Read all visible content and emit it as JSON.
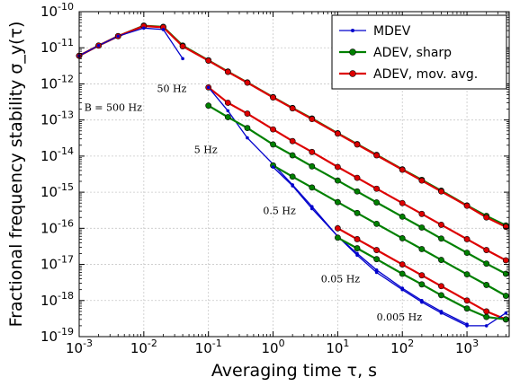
{
  "chart_data": {
    "type": "line",
    "xlabel": "Averaging time τ, s",
    "ylabel": "Fractional frequency stability σ_y(τ)",
    "xscale": "log",
    "yscale": "log",
    "xlim": [
      0.001,
      4500
    ],
    "ylim": [
      1e-19,
      1e-10
    ],
    "x_ticks": [
      {
        "base": "10",
        "exp": "-3",
        "value": 0.001
      },
      {
        "base": "10",
        "exp": "-2",
        "value": 0.01
      },
      {
        "base": "10",
        "exp": "-1",
        "value": 0.1
      },
      {
        "base": "10",
        "exp": "0",
        "value": 1
      },
      {
        "base": "10",
        "exp": "1",
        "value": 10
      },
      {
        "base": "10",
        "exp": "2",
        "value": 100
      },
      {
        "base": "10",
        "exp": "3",
        "value": 1000
      }
    ],
    "y_ticks": [
      {
        "base": "10",
        "exp": "-10",
        "value": 1e-10
      },
      {
        "base": "10",
        "exp": "-11",
        "value": 1e-11
      },
      {
        "base": "10",
        "exp": "-12",
        "value": 1e-12
      },
      {
        "base": "10",
        "exp": "-13",
        "value": 1e-13
      },
      {
        "base": "10",
        "exp": "-14",
        "value": 1e-14
      },
      {
        "base": "10",
        "exp": "-15",
        "value": 1e-15
      },
      {
        "base": "10",
        "exp": "-16",
        "value": 1e-16
      },
      {
        "base": "10",
        "exp": "-17",
        "value": 1e-17
      },
      {
        "base": "10",
        "exp": "-18",
        "value": 1e-18
      },
      {
        "base": "10",
        "exp": "-19",
        "value": 1e-19
      }
    ],
    "legend": {
      "position": "top-right",
      "entries": [
        {
          "label": "MDEV",
          "color": "#0000cc",
          "marker": "small-dot"
        },
        {
          "label": "ADEV, sharp",
          "color": "#008000",
          "marker": "circle"
        },
        {
          "label": "ADEV, mov. avg.",
          "color": "#dd0000",
          "marker": "circle"
        }
      ]
    },
    "annotations": [
      {
        "text": "B = 500 Hz",
        "x": 0.0012,
        "y": 1.8e-13
      },
      {
        "text": "50 Hz",
        "x": 0.016,
        "y": 6e-13
      },
      {
        "text": "5 Hz",
        "x": 0.06,
        "y": 1.2e-14
      },
      {
        "text": "0.5 Hz",
        "x": 0.7,
        "y": 2.5e-16
      },
      {
        "text": "0.05 Hz",
        "x": 5.5,
        "y": 3.2e-18
      },
      {
        "text": "0.005 Hz",
        "x": 40,
        "y": 2.8e-19
      }
    ],
    "series": [
      {
        "name": "ADEV, sharp",
        "group": "500 Hz",
        "color": "#008000",
        "x": [
          0.001,
          0.002,
          0.004,
          0.01,
          0.02,
          0.04,
          0.1,
          0.2,
          0.4,
          1,
          2,
          4,
          10,
          20,
          40,
          100,
          200,
          400,
          1000,
          2000,
          4000
        ],
        "y": [
          6e-12,
          1.15e-11,
          2.1e-11,
          4.1e-11,
          3.8e-11,
          1.15e-11,
          4.5e-12,
          2.2e-12,
          1.1e-12,
          4.3e-13,
          2.15e-13,
          1.1e-13,
          4.3e-14,
          2.15e-14,
          1.08e-14,
          4.3e-15,
          2.2e-15,
          1.1e-15,
          4.3e-16,
          2.2e-16,
          1.2e-16
        ]
      },
      {
        "name": "ADEV, mov. avg.",
        "group": "500 Hz",
        "color": "#dd0000",
        "x": [
          0.001,
          0.002,
          0.004,
          0.01,
          0.02,
          0.04,
          0.1,
          0.2,
          0.4,
          1,
          2,
          4,
          10,
          20,
          40,
          100,
          200,
          400,
          1000,
          2000,
          4000
        ],
        "y": [
          6e-12,
          1.15e-11,
          2.1e-11,
          4e-11,
          3.7e-11,
          1.1e-11,
          4.4e-12,
          2.15e-12,
          1.08e-12,
          4.2e-13,
          2.1e-13,
          1.06e-13,
          4.2e-14,
          2.1e-14,
          1.05e-14,
          4.2e-15,
          2.1e-15,
          1.05e-15,
          4.2e-16,
          2e-16,
          1.1e-16
        ]
      },
      {
        "name": "MDEV",
        "group": "500 Hz",
        "color": "#0000cc",
        "x": [
          0.001,
          0.002,
          0.004,
          0.01,
          0.02,
          0.04
        ],
        "y": [
          6e-12,
          1.15e-11,
          2.1e-11,
          3.5e-11,
          3.2e-11,
          5e-12
        ]
      },
      {
        "name": "ADEV, mov. avg.",
        "group": "5 Hz",
        "color": "#dd0000",
        "x": [
          0.1,
          0.2,
          0.4,
          1,
          2,
          4,
          10,
          20,
          40,
          100,
          200,
          400,
          1000,
          2000,
          4000
        ],
        "y": [
          8e-13,
          3e-13,
          1.5e-13,
          5.5e-14,
          2.6e-14,
          1.3e-14,
          5e-15,
          2.5e-15,
          1.25e-15,
          5e-16,
          2.5e-16,
          1.25e-16,
          5e-17,
          2.5e-17,
          1.3e-17
        ]
      },
      {
        "name": "MDEV",
        "group": "5 Hz",
        "color": "#0000cc",
        "x": [
          0.1,
          0.2,
          0.4,
          1,
          2,
          4,
          10,
          20,
          40,
          100,
          200,
          400,
          1000
        ],
        "y": [
          8e-13,
          1.8e-13,
          3.2e-14,
          6e-15,
          1.6e-15,
          4e-16,
          6e-17,
          2e-17,
          7e-18,
          2.2e-18,
          1e-18,
          5e-19,
          2.2e-19
        ]
      },
      {
        "name": "ADEV, sharp",
        "group": "0.5 Hz",
        "color": "#008000",
        "x": [
          0.1,
          0.2,
          0.4,
          1,
          2,
          4,
          10,
          20,
          40,
          100,
          200,
          400,
          1000,
          2000,
          4000
        ],
        "y": [
          2.5e-13,
          1.2e-13,
          6e-14,
          2.1e-14,
          1.05e-14,
          5.2e-15,
          2.1e-15,
          1.05e-15,
          5.2e-16,
          2.1e-16,
          1.05e-16,
          5.2e-17,
          2.1e-17,
          1.05e-17,
          5.5e-18
        ]
      },
      {
        "name": "ADEV, sharp",
        "group": "0.05 Hz",
        "color": "#008000",
        "x": [
          1,
          2,
          4,
          10,
          20,
          40,
          100,
          200,
          400,
          1000,
          2000,
          4000
        ],
        "y": [
          5.5e-15,
          2.7e-15,
          1.35e-15,
          5.3e-16,
          2.65e-16,
          1.33e-16,
          5.3e-17,
          2.65e-17,
          1.33e-17,
          5.3e-18,
          2.7e-18,
          1.35e-18
        ]
      },
      {
        "name": "ADEV, mov. avg.",
        "group": "0.05 Hz",
        "color": "#dd0000",
        "x": [
          10,
          20,
          40,
          100,
          200,
          400,
          1000,
          2000,
          4000
        ],
        "y": [
          1e-16,
          5e-17,
          2.5e-17,
          1e-17,
          5e-18,
          2.5e-18,
          1e-18,
          5e-19,
          3e-19
        ]
      },
      {
        "name": "MDEV",
        "group": "0.05 Hz",
        "color": "#0000cc",
        "x": [
          1,
          2,
          4,
          10,
          20,
          40,
          100,
          200,
          400,
          1000,
          2000,
          4000
        ],
        "y": [
          5e-15,
          1.5e-15,
          3.5e-16,
          6e-17,
          1.8e-17,
          6e-18,
          2e-18,
          9e-19,
          4.5e-19,
          2e-19,
          2e-19,
          4.5e-19
        ]
      },
      {
        "name": "ADEV, sharp",
        "group": "0.005 Hz",
        "color": "#008000",
        "x": [
          10,
          20,
          40,
          100,
          200,
          400,
          1000,
          2000,
          4000
        ],
        "y": [
          5.5e-17,
          2.8e-17,
          1.4e-17,
          5.5e-18,
          2.8e-18,
          1.4e-18,
          6e-19,
          3.5e-19,
          3e-19
        ]
      }
    ]
  }
}
